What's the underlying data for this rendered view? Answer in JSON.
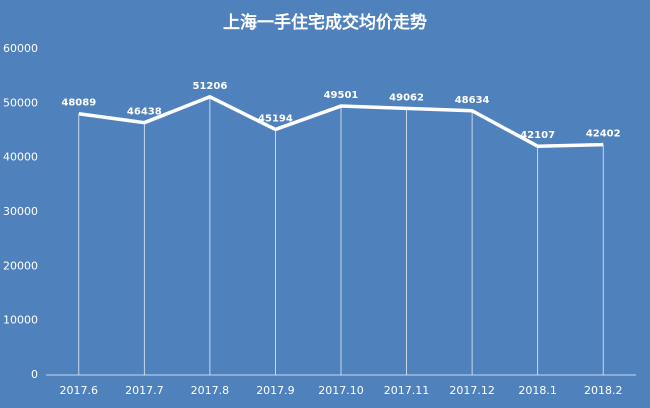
{
  "chart_data": {
    "type": "line",
    "title": "上海一手住宅成交均价走势",
    "categories": [
      "2017.6",
      "2017.7",
      "2017.8",
      "2017.9",
      "2017.10",
      "2017.11",
      "2017.12",
      "2018.1",
      "2018.2"
    ],
    "values": [
      48089,
      46438,
      51206,
      45194,
      49501,
      49062,
      48634,
      42107,
      42402
    ],
    "color": "#ffffff",
    "ylim": [
      0,
      60000
    ],
    "yticks": [
      0,
      10000,
      20000,
      30000,
      40000,
      50000,
      60000
    ],
    "drop_lines": true
  }
}
